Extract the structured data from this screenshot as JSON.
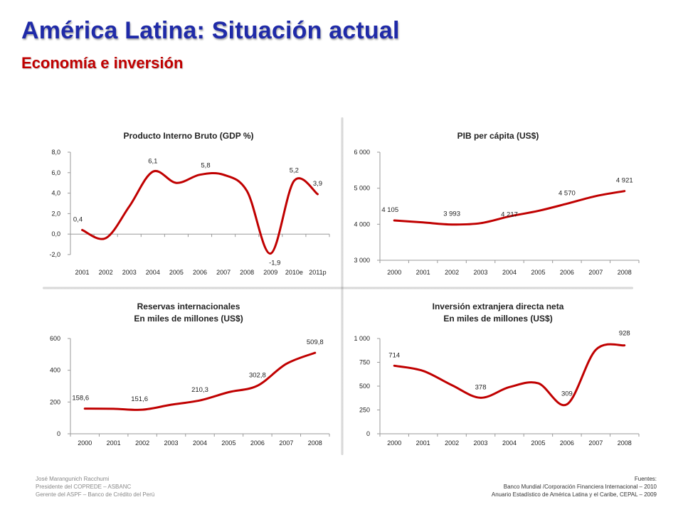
{
  "slide": {
    "title": "América Latina: Situación actual",
    "subtitle": "Economía e inversión"
  },
  "colors": {
    "line": "#c00000",
    "title": "#1f2aa8",
    "subtitle": "#c00000"
  },
  "chart_data": [
    {
      "type": "line",
      "title": [
        "Producto Interno Bruto (GDP %)"
      ],
      "categories": [
        "2001",
        "2002",
        "2003",
        "2004",
        "2005",
        "2006",
        "2007",
        "2008",
        "2009",
        "2010e",
        "2011p"
      ],
      "values": [
        0.4,
        -0.4,
        2.7,
        6.1,
        5.0,
        5.8,
        5.8,
        4.2,
        -1.9,
        5.2,
        3.9
      ],
      "labels": [
        {
          "index": 0,
          "text": "0,4"
        },
        {
          "index": 3,
          "text": "6,1"
        },
        {
          "index": 5,
          "text": "5,8"
        },
        {
          "index": 8,
          "text": "-1,9"
        },
        {
          "index": 9,
          "text": "5,2"
        },
        {
          "index": 10,
          "text": "3,9"
        }
      ],
      "yticks": [
        -2,
        0,
        2,
        4,
        6,
        8
      ],
      "ytick_labels": [
        "-2,0",
        "0,0",
        "2,0",
        "4,0",
        "6,0",
        "8,0"
      ],
      "ylim": [
        -2,
        8
      ],
      "xaxis_at_zero": true
    },
    {
      "type": "line",
      "title": [
        "PIB per cápita (US$)"
      ],
      "categories": [
        "2000",
        "2001",
        "2002",
        "2003",
        "2004",
        "2005",
        "2006",
        "2007",
        "2008"
      ],
      "values": [
        4105,
        4050,
        3993,
        4030,
        4217,
        4370,
        4570,
        4780,
        4921
      ],
      "labels": [
        {
          "index": 0,
          "text": "4 105"
        },
        {
          "index": 2,
          "text": "3 993"
        },
        {
          "index": 4,
          "text": "4 217"
        },
        {
          "index": 6,
          "text": "4 570"
        },
        {
          "index": 8,
          "text": "4 921"
        }
      ],
      "yticks": [
        3000,
        4000,
        5000,
        6000
      ],
      "ytick_labels": [
        "3 000",
        "4 000",
        "5 000",
        "6 000"
      ],
      "ylim": [
        3000,
        6000
      ]
    },
    {
      "type": "line",
      "title": [
        "Reservas internacionales",
        "En miles de millones (US$)"
      ],
      "categories": [
        "2000",
        "2001",
        "2002",
        "2003",
        "2004",
        "2005",
        "2006",
        "2007",
        "2008"
      ],
      "values": [
        158.6,
        157.5,
        151.6,
        183,
        210.3,
        262,
        302.8,
        440,
        509.8
      ],
      "labels": [
        {
          "index": 0,
          "text": "158,6"
        },
        {
          "index": 2,
          "text": "151,6"
        },
        {
          "index": 4,
          "text": "210,3"
        },
        {
          "index": 6,
          "text": "302,8"
        },
        {
          "index": 8,
          "text": "509,8"
        }
      ],
      "yticks": [
        0,
        200,
        400,
        600
      ],
      "ytick_labels": [
        "0",
        "200",
        "400",
        "600"
      ],
      "ylim": [
        0,
        600
      ]
    },
    {
      "type": "line",
      "title": [
        "Inversión extranjera directa neta",
        "En miles de millones (US$)"
      ],
      "categories": [
        "2000",
        "2001",
        "2002",
        "2003",
        "2004",
        "2005",
        "2006",
        "2007",
        "2008"
      ],
      "values": [
        714,
        660,
        510,
        378,
        490,
        530,
        309,
        880,
        928
      ],
      "labels": [
        {
          "index": 0,
          "text": "714"
        },
        {
          "index": 3,
          "text": "378"
        },
        {
          "index": 6,
          "text": "309"
        },
        {
          "index": 8,
          "text": "928"
        }
      ],
      "yticks": [
        0,
        250,
        500,
        750,
        1000
      ],
      "ytick_labels": [
        "0",
        "250",
        "500",
        "750",
        "1 000"
      ],
      "ylim": [
        0,
        1000
      ]
    }
  ],
  "footer": {
    "author_lines": [
      "José Marangunich Racchumi",
      "Presidente del COPREDE – ASBANC",
      "Gerente del ASPF – Banco de Crédito del Perú"
    ],
    "sources_lines": [
      "Fuentes:",
      "Banco Mundial /Corporación Financiera Internacional – 2010",
      "Anuario Estadístico de América Latina y el Caribe, CEPAL – 2009"
    ]
  }
}
